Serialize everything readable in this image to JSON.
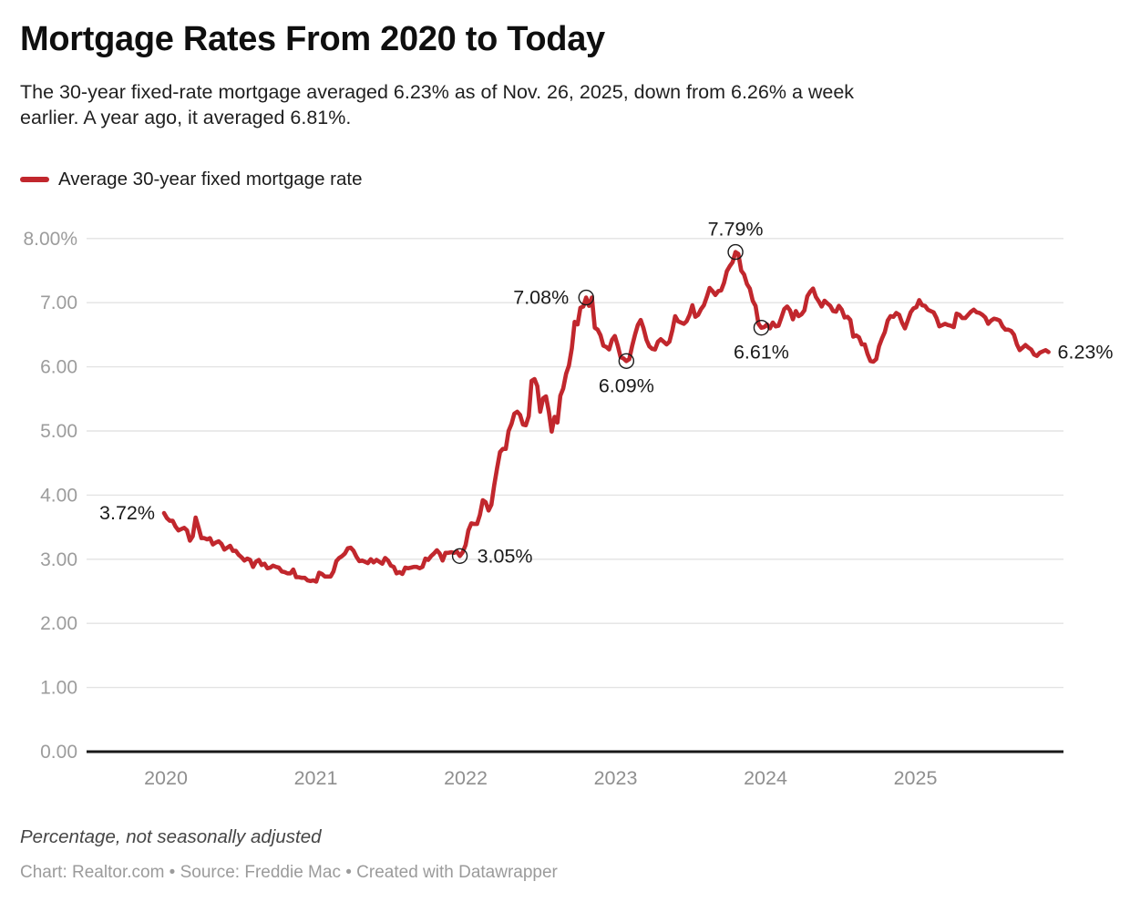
{
  "header": {
    "title": "Mortgage Rates From 2020 to Today",
    "description": "The 30-year fixed-rate mortgage averaged 6.23% as of Nov. 26, 2025, down from 6.26% a week\nearlier. A year ago, it averaged 6.81%."
  },
  "legend": {
    "label": "Average 30-year fixed mortgage rate"
  },
  "footer": {
    "note": "Percentage, not seasonally adjusted",
    "attribution": "Chart: Realtor.com • Source: Freddie Mac • Created with Datawrapper"
  },
  "colors": {
    "line": "#c1272d",
    "grid": "#e3e3e3",
    "axis": "#191919",
    "marker_stroke": "#1a1a1a"
  },
  "chart_data": {
    "type": "line",
    "title": "Mortgage Rates From 2020 to Today",
    "ylabel": "Percentage, not seasonally adjusted",
    "ylim": [
      0,
      8
    ],
    "grid": "horizontal",
    "legend_position": "top-left",
    "y_axis": {
      "ticks": [
        {
          "value": 0,
          "label": "0.00"
        },
        {
          "value": 1,
          "label": "1.00"
        },
        {
          "value": 2,
          "label": "2.00"
        },
        {
          "value": 3,
          "label": "3.00"
        },
        {
          "value": 4,
          "label": "4.00"
        },
        {
          "value": 5,
          "label": "5.00"
        },
        {
          "value": 6,
          "label": "6.00"
        },
        {
          "value": 7,
          "label": "7.00"
        },
        {
          "value": 8,
          "label": "8.00%"
        }
      ]
    },
    "x_axis": {
      "ticks": [
        {
          "value": 2020,
          "label": "2020"
        },
        {
          "value": 2021,
          "label": "2021"
        },
        {
          "value": 2022,
          "label": "2022"
        },
        {
          "value": 2023,
          "label": "2023"
        },
        {
          "value": 2024,
          "label": "2024"
        },
        {
          "value": 2025,
          "label": "2025"
        }
      ],
      "range": [
        2020.0,
        2026.0
      ]
    },
    "series": [
      {
        "name": "Average 30-year fixed mortgage rate",
        "frequency": "weekly",
        "x_start": 2020.0,
        "x_end": 2025.9,
        "values": [
          3.72,
          3.64,
          3.6,
          3.6,
          3.51,
          3.45,
          3.47,
          3.49,
          3.45,
          3.29,
          3.36,
          3.65,
          3.5,
          3.33,
          3.33,
          3.31,
          3.33,
          3.23,
          3.26,
          3.28,
          3.24,
          3.15,
          3.18,
          3.21,
          3.13,
          3.13,
          3.07,
          3.03,
          2.98,
          3.01,
          2.99,
          2.88,
          2.96,
          2.99,
          2.91,
          2.93,
          2.86,
          2.87,
          2.9,
          2.88,
          2.87,
          2.81,
          2.8,
          2.78,
          2.78,
          2.84,
          2.72,
          2.72,
          2.71,
          2.71,
          2.67,
          2.66,
          2.67,
          2.65,
          2.79,
          2.77,
          2.73,
          2.73,
          2.73,
          2.81,
          2.97,
          3.02,
          3.05,
          3.09,
          3.17,
          3.18,
          3.13,
          3.04,
          2.97,
          2.98,
          2.96,
          2.94,
          3.0,
          2.95,
          2.99,
          2.96,
          2.93,
          3.02,
          2.98,
          2.9,
          2.88,
          2.78,
          2.8,
          2.77,
          2.87,
          2.86,
          2.87,
          2.88,
          2.88,
          2.86,
          2.88,
          3.01,
          2.99,
          3.05,
          3.09,
          3.14,
          3.09,
          2.98,
          3.1,
          3.1,
          3.11,
          3.1,
          3.12,
          3.05,
          3.11,
          3.22,
          3.45,
          3.56,
          3.55,
          3.55,
          3.69,
          3.92,
          3.89,
          3.76,
          3.85,
          4.16,
          4.42,
          4.67,
          4.72,
          4.72,
          5.0,
          5.11,
          5.27,
          5.3,
          5.25,
          5.1,
          5.09,
          5.23,
          5.78,
          5.81,
          5.7,
          5.3,
          5.51,
          5.54,
          5.3,
          4.99,
          5.22,
          5.13,
          5.55,
          5.66,
          5.89,
          6.02,
          6.29,
          6.7,
          6.66,
          6.92,
          6.94,
          7.08,
          6.95,
          7.08,
          6.61,
          6.58,
          6.49,
          6.33,
          6.31,
          6.27,
          6.42,
          6.48,
          6.33,
          6.15,
          6.13,
          6.09,
          6.12,
          6.32,
          6.5,
          6.65,
          6.73,
          6.6,
          6.42,
          6.32,
          6.28,
          6.27,
          6.39,
          6.43,
          6.39,
          6.35,
          6.39,
          6.57,
          6.79,
          6.71,
          6.69,
          6.67,
          6.71,
          6.81,
          6.96,
          6.78,
          6.81,
          6.9,
          6.96,
          7.09,
          7.23,
          7.18,
          7.12,
          7.18,
          7.19,
          7.31,
          7.49,
          7.57,
          7.63,
          7.79,
          7.76,
          7.5,
          7.44,
          7.29,
          7.22,
          7.03,
          6.95,
          6.67,
          6.61,
          6.62,
          6.66,
          6.6,
          6.69,
          6.63,
          6.64,
          6.77,
          6.9,
          6.94,
          6.88,
          6.74,
          6.87,
          6.79,
          6.82,
          6.88,
          7.1,
          7.17,
          7.22,
          7.09,
          7.02,
          6.94,
          7.03,
          6.99,
          6.95,
          6.87,
          6.86,
          6.95,
          6.89,
          6.77,
          6.78,
          6.73,
          6.47,
          6.49,
          6.46,
          6.35,
          6.35,
          6.2,
          6.09,
          6.08,
          6.12,
          6.32,
          6.44,
          6.54,
          6.72,
          6.79,
          6.78,
          6.84,
          6.81,
          6.69,
          6.6,
          6.72,
          6.85,
          6.91,
          6.93,
          7.04,
          6.96,
          6.95,
          6.89,
          6.87,
          6.85,
          6.76,
          6.63,
          6.65,
          6.67,
          6.65,
          6.64,
          6.62,
          6.83,
          6.81,
          6.76,
          6.76,
          6.81,
          6.86,
          6.89,
          6.85,
          6.84,
          6.81,
          6.77,
          6.67,
          6.72,
          6.75,
          6.74,
          6.72,
          6.63,
          6.58,
          6.58,
          6.56,
          6.5,
          6.35,
          6.26,
          6.3,
          6.34,
          6.3,
          6.27,
          6.19,
          6.17,
          6.22,
          6.24,
          6.26,
          6.23
        ]
      }
    ],
    "annotations": [
      {
        "label": "3.72%",
        "index": 0,
        "value": 3.72,
        "circle": false,
        "position": "left"
      },
      {
        "label": "3.05%",
        "index": 103,
        "value": 3.05,
        "circle": true,
        "position": "right"
      },
      {
        "label": "7.08%",
        "index": 147,
        "value": 7.08,
        "circle": true,
        "position": "left"
      },
      {
        "label": "6.09%",
        "index": 161,
        "value": 6.09,
        "circle": true,
        "position": "below"
      },
      {
        "label": "7.79%",
        "index": 199,
        "value": 7.79,
        "circle": true,
        "position": "above"
      },
      {
        "label": "6.61%",
        "index": 208,
        "value": 6.61,
        "circle": true,
        "position": "below"
      },
      {
        "label": "6.23%",
        "index": 308,
        "value": 6.23,
        "circle": false,
        "position": "right"
      }
    ]
  }
}
